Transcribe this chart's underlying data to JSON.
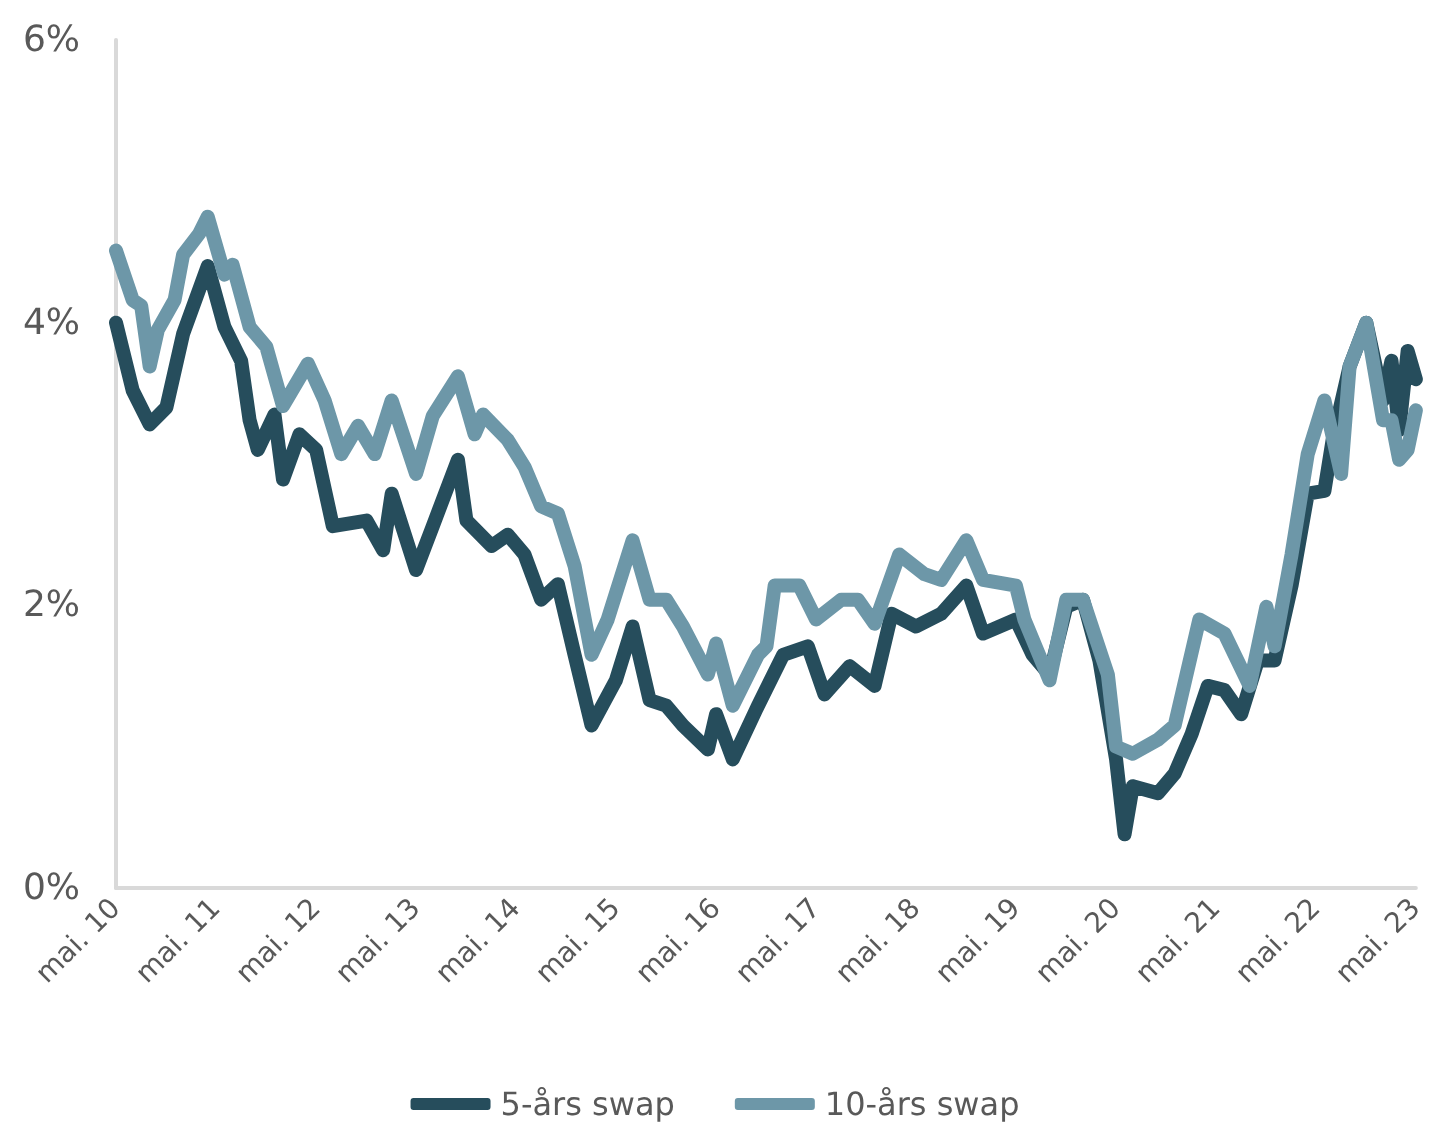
{
  "chart_data": {
    "type": "line",
    "xlim": [
      "2010-05",
      "2023-05"
    ],
    "xticks": [
      {
        "value": "2010-05",
        "label": "mai. 10"
      },
      {
        "value": "2011-05",
        "label": "mai. 11"
      },
      {
        "value": "2012-05",
        "label": "mai. 12"
      },
      {
        "value": "2013-05",
        "label": "mai. 13"
      },
      {
        "value": "2014-05",
        "label": "mai. 14"
      },
      {
        "value": "2015-05",
        "label": "mai. 15"
      },
      {
        "value": "2016-05",
        "label": "mai. 16"
      },
      {
        "value": "2017-05",
        "label": "mai. 17"
      },
      {
        "value": "2018-05",
        "label": "mai. 18"
      },
      {
        "value": "2019-05",
        "label": "mai. 19"
      },
      {
        "value": "2020-05",
        "label": "mai. 20"
      },
      {
        "value": "2021-05",
        "label": "mai. 21"
      },
      {
        "value": "2022-05",
        "label": "mai. 22"
      },
      {
        "value": "2023-05",
        "label": "mai. 23"
      }
    ],
    "ylim": [
      0,
      6
    ],
    "yticks": [
      {
        "value": 0,
        "label": "0%"
      },
      {
        "value": 2,
        "label": "2%"
      },
      {
        "value": 4,
        "label": "4%"
      },
      {
        "value": 6,
        "label": "6%"
      }
    ],
    "grid": false,
    "legend": "bottom",
    "marker": "none",
    "series": [
      {
        "name": "5-års swap",
        "color": "#264d5c",
        "x": [
          "2010-05",
          "2010-07",
          "2010-09",
          "2010-11",
          "2011-01",
          "2011-04",
          "2011-06",
          "2011-08",
          "2011-09",
          "2011-10",
          "2011-12",
          "2012-01",
          "2012-03",
          "2012-05",
          "2012-07",
          "2012-11",
          "2013-01",
          "2013-02",
          "2013-05",
          "2013-07",
          "2013-10",
          "2013-11",
          "2014-02",
          "2014-04",
          "2014-06",
          "2014-08",
          "2014-10",
          "2014-12",
          "2015-02",
          "2015-05",
          "2015-07",
          "2015-09",
          "2015-11",
          "2016-01",
          "2016-04",
          "2016-05",
          "2016-07",
          "2016-10",
          "2017-01",
          "2017-04",
          "2017-06",
          "2017-09",
          "2017-12",
          "2018-02",
          "2018-05",
          "2018-08",
          "2018-11",
          "2019-01",
          "2019-05",
          "2019-07",
          "2019-09",
          "2019-11",
          "2020-01",
          "2020-03",
          "2020-05",
          "2020-06",
          "2020-07",
          "2020-10",
          "2020-12",
          "2021-02",
          "2021-04",
          "2021-06",
          "2021-08",
          "2021-10",
          "2021-12",
          "2022-02",
          "2022-04",
          "2022-06",
          "2022-07",
          "2022-09",
          "2022-11",
          "2023-01",
          "2023-02",
          "2023-03",
          "2023-04",
          "2023-05"
        ],
        "values": [
          4.0,
          3.52,
          3.28,
          3.4,
          3.92,
          4.4,
          3.97,
          3.73,
          3.31,
          3.1,
          3.35,
          2.89,
          3.21,
          3.1,
          2.56,
          2.6,
          2.39,
          2.79,
          2.25,
          2.56,
          3.03,
          2.6,
          2.42,
          2.5,
          2.36,
          2.04,
          2.15,
          1.65,
          1.15,
          1.47,
          1.85,
          1.33,
          1.29,
          1.15,
          0.98,
          1.23,
          0.91,
          1.29,
          1.65,
          1.71,
          1.37,
          1.57,
          1.43,
          1.94,
          1.85,
          1.94,
          2.14,
          1.8,
          1.9,
          1.65,
          1.51,
          1.99,
          2.04,
          1.61,
          0.91,
          0.38,
          0.72,
          0.67,
          0.81,
          1.09,
          1.43,
          1.4,
          1.23,
          1.61,
          1.61,
          2.14,
          2.79,
          2.81,
          3.17,
          3.69,
          4.0,
          3.45,
          3.73,
          3.24,
          3.8,
          3.6
        ]
      },
      {
        "name": "10-års swap",
        "color": "#6d97a8",
        "x": [
          "2010-05",
          "2010-07",
          "2010-08",
          "2010-09",
          "2010-10",
          "2010-12",
          "2011-01",
          "2011-03",
          "2011-04",
          "2011-06",
          "2011-07",
          "2011-09",
          "2011-11",
          "2012-01",
          "2012-04",
          "2012-06",
          "2012-08",
          "2012-10",
          "2012-12",
          "2013-02",
          "2013-05",
          "2013-07",
          "2013-10",
          "2013-12",
          "2014-01",
          "2014-04",
          "2014-06",
          "2014-08",
          "2014-10",
          "2014-12",
          "2015-02",
          "2015-04",
          "2015-07",
          "2015-09",
          "2015-11",
          "2016-01",
          "2016-04",
          "2016-05",
          "2016-07",
          "2016-10",
          "2016-11",
          "2016-12",
          "2017-03",
          "2017-05",
          "2017-08",
          "2017-10",
          "2017-12",
          "2018-03",
          "2018-06",
          "2018-08",
          "2018-11",
          "2019-01",
          "2019-05",
          "2019-06",
          "2019-09",
          "2019-11",
          "2020-01",
          "2020-04",
          "2020-05",
          "2020-07",
          "2020-10",
          "2020-12",
          "2021-03",
          "2021-06",
          "2021-09",
          "2021-11",
          "2021-12",
          "2022-02",
          "2022-04",
          "2022-06",
          "2022-08",
          "2022-09",
          "2022-11",
          "2023-01",
          "2023-02",
          "2023-03",
          "2023-04",
          "2023-05"
        ],
        "values": [
          4.51,
          4.16,
          4.12,
          3.69,
          3.95,
          4.16,
          4.48,
          4.63,
          4.75,
          4.34,
          4.41,
          3.97,
          3.83,
          3.41,
          3.71,
          3.45,
          3.07,
          3.27,
          3.07,
          3.45,
          2.93,
          3.34,
          3.62,
          3.21,
          3.35,
          3.17,
          2.98,
          2.7,
          2.65,
          2.28,
          1.65,
          1.9,
          2.46,
          2.04,
          2.04,
          1.85,
          1.51,
          1.73,
          1.29,
          1.65,
          1.71,
          2.14,
          2.14,
          1.9,
          2.04,
          2.04,
          1.87,
          2.36,
          2.22,
          2.18,
          2.46,
          2.18,
          2.14,
          1.9,
          1.47,
          2.04,
          2.04,
          1.51,
          1.0,
          0.95,
          1.05,
          1.15,
          1.9,
          1.8,
          1.43,
          1.99,
          1.71,
          2.36,
          3.07,
          3.45,
          2.93,
          3.69,
          4.0,
          3.31,
          3.31,
          3.03,
          3.1,
          3.38
        ]
      }
    ]
  }
}
